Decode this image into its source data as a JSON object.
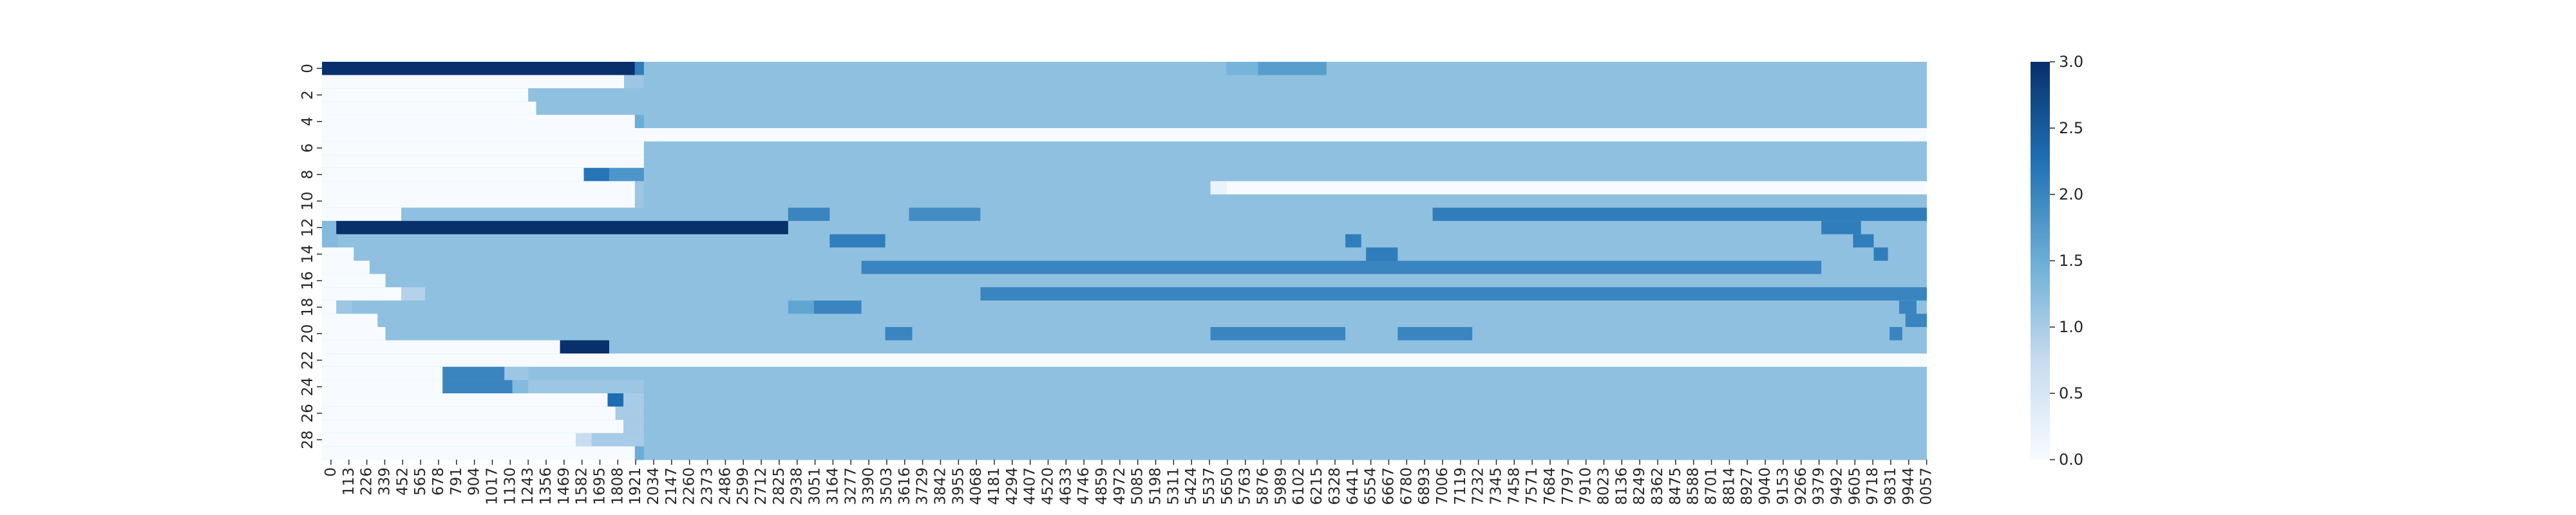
{
  "chart_data": {
    "type": "heatmap",
    "title": "",
    "xlabel": "",
    "ylabel": "",
    "colormap": "Blues",
    "color_stops": [
      "#f7fbff",
      "#c6dbef",
      "#6baed6",
      "#2171b5",
      "#08306b"
    ],
    "vmin": 0,
    "vmax": 3.0,
    "colorbar_ticks": [
      "0.0",
      "0.5",
      "1.0",
      "1.5",
      "2.0",
      "2.5",
      "3.0"
    ],
    "y_tick_labels": [
      "0",
      "2",
      "4",
      "6",
      "8",
      "10",
      "12",
      "14",
      "16",
      "18",
      "20",
      "22",
      "24",
      "26",
      "28"
    ],
    "x_tick_labels": [
      "0",
      "113",
      "226",
      "339",
      "452",
      "565",
      "678",
      "791",
      "904",
      "1017",
      "1130",
      "1243",
      "1356",
      "1469",
      "1582",
      "1695",
      "1808",
      "1921",
      "2034",
      "2147",
      "2260",
      "2373",
      "2486",
      "2599",
      "2712",
      "2825",
      "2938",
      "3051",
      "3164",
      "3277",
      "3390",
      "3503",
      "3616",
      "3729",
      "3842",
      "3955",
      "4068",
      "4181",
      "4294",
      "4407",
      "4520",
      "4633",
      "4746",
      "4859",
      "4972",
      "5085",
      "5198",
      "5311",
      "5424",
      "5537",
      "5650",
      "5763",
      "5876",
      "5989",
      "6102",
      "6215",
      "6328",
      "6441",
      "6554",
      "6667",
      "6780",
      "6893",
      "7006",
      "7119",
      "7232",
      "7345",
      "7458",
      "7571",
      "7684",
      "7797",
      "7910",
      "8023",
      "8136",
      "8249",
      "8362",
      "8475",
      "8588",
      "8701",
      "8814",
      "8927",
      "9040",
      "9153",
      "9266",
      "9379",
      "9492",
      "9605",
      "9718",
      "9831",
      "9944",
      "0057"
    ],
    "n_rows": 30,
    "n_cols": 10115,
    "background_value": 1.2,
    "row_segments": [
      [
        [
          0,
          1972,
          3.0
        ],
        [
          1972,
          2029,
          2.1
        ],
        [
          5700,
          5900,
          1.4
        ],
        [
          5900,
          6331,
          1.7
        ]
      ],
      [
        [
          0,
          1904,
          0.0
        ],
        [
          1904,
          2029,
          1.1
        ]
      ],
      [
        [
          0,
          1300,
          0.0
        ],
        [
          1300,
          2029,
          1.2
        ]
      ],
      [
        [
          0,
          1350,
          0.0
        ],
        [
          1350,
          2029,
          1.2
        ]
      ],
      [
        [
          0,
          1972,
          0.0
        ],
        [
          1972,
          2029,
          1.5
        ]
      ],
      [
        [
          0,
          10115,
          0.0
        ]
      ],
      [
        [
          0,
          2029,
          0.0
        ]
      ],
      [
        [
          0,
          2029,
          0.0
        ]
      ],
      [
        [
          0,
          1650,
          0.0
        ],
        [
          1650,
          1810,
          2.2
        ],
        [
          1810,
          2029,
          1.8
        ]
      ],
      [
        [
          0,
          1972,
          0.0
        ],
        [
          1972,
          2029,
          1.1
        ],
        [
          5600,
          5700,
          0.2
        ],
        [
          5700,
          10115,
          0.0
        ]
      ],
      [
        [
          0,
          1972,
          0.0
        ],
        [
          1972,
          2029,
          1.1
        ]
      ],
      [
        [
          0,
          500,
          0.0
        ],
        [
          500,
          1972,
          1.2
        ],
        [
          2938,
          3200,
          2.0
        ],
        [
          3700,
          4150,
          1.9
        ],
        [
          7000,
          10115,
          2.1
        ]
      ],
      [
        [
          0,
          90,
          1.3
        ],
        [
          90,
          2938,
          3.0
        ],
        [
          9450,
          9700,
          2.1
        ]
      ],
      [
        [
          0,
          100,
          1.3
        ],
        [
          3200,
          3550,
          2.1
        ],
        [
          6450,
          6550,
          2.1
        ],
        [
          9650,
          9780,
          2.1
        ]
      ],
      [
        [
          0,
          200,
          0.0
        ],
        [
          6580,
          6780,
          2.1
        ],
        [
          9780,
          9870,
          2.1
        ]
      ],
      [
        [
          0,
          300,
          0.0
        ],
        [
          3400,
          9450,
          2.0
        ]
      ],
      [
        [
          0,
          400,
          0.0
        ]
      ],
      [
        [
          0,
          500,
          0.0
        ],
        [
          500,
          650,
          0.9
        ],
        [
          4150,
          10115,
          2.0
        ]
      ],
      [
        [
          0,
          90,
          0.0
        ],
        [
          90,
          190,
          1.1
        ],
        [
          2938,
          3100,
          1.6
        ],
        [
          3100,
          3400,
          2.0
        ],
        [
          9940,
          10050,
          2.0
        ]
      ],
      [
        [
          0,
          350,
          0.0
        ],
        [
          9980,
          10115,
          2.0
        ]
      ],
      [
        [
          0,
          400,
          0.0
        ],
        [
          3550,
          3720,
          2.0
        ],
        [
          5600,
          6450,
          2.0
        ],
        [
          6780,
          7250,
          2.0
        ],
        [
          9880,
          9960,
          2.0
        ]
      ],
      [
        [
          0,
          1500,
          0.0
        ],
        [
          1500,
          1810,
          3.0
        ]
      ],
      [
        [
          0,
          10115,
          0.0
        ]
      ],
      [
        [
          0,
          760,
          0.0
        ],
        [
          760,
          1150,
          2.0
        ],
        [
          1150,
          1300,
          1.1
        ]
      ],
      [
        [
          0,
          760,
          0.0
        ],
        [
          760,
          1200,
          2.0
        ],
        [
          1200,
          1300,
          1.3
        ],
        [
          1300,
          2029,
          1.1
        ]
      ],
      [
        [
          0,
          1800,
          0.0
        ],
        [
          1800,
          1900,
          2.3
        ],
        [
          1900,
          2029,
          1.0
        ]
      ],
      [
        [
          0,
          1850,
          0.0
        ],
        [
          1850,
          2029,
          1.0
        ]
      ],
      [
        [
          0,
          1900,
          0.0
        ],
        [
          1900,
          2029,
          1.0
        ]
      ],
      [
        [
          0,
          1600,
          0.0
        ],
        [
          1600,
          1700,
          0.7
        ],
        [
          1700,
          2029,
          1.0
        ]
      ],
      [
        [
          0,
          1972,
          0.0
        ],
        [
          1972,
          2029,
          1.5
        ]
      ]
    ]
  }
}
